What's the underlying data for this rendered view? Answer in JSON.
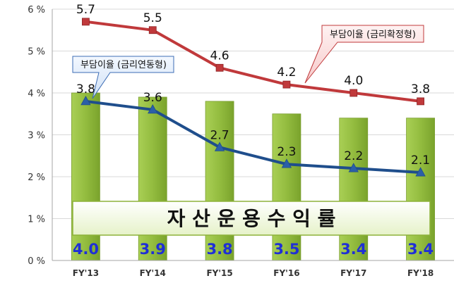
{
  "chart_data": {
    "type": "bar",
    "title": "",
    "banner": "자 산 운 용 수 익 률",
    "categories": [
      "FY'13",
      "FY'14",
      "FY'15",
      "FY'16",
      "FY'17",
      "FY'18"
    ],
    "y_ticks": [
      "0 %",
      "1 %",
      "2 %",
      "3 %",
      "4 %",
      "5 %",
      "6 %"
    ],
    "ylim": [
      0,
      6
    ],
    "ylabel": "",
    "xlabel": "",
    "grid": true,
    "bars": {
      "values": [
        4.0,
        3.9,
        3.8,
        3.5,
        3.4,
        3.4
      ],
      "labels": [
        "4.0",
        "3.9",
        "3.8",
        "3.5",
        "3.4",
        "3.4"
      ],
      "color": "#8db23a"
    },
    "series": [
      {
        "name": "부담이율 (금리확정형)",
        "values": [
          5.7,
          5.5,
          4.6,
          4.2,
          4.0,
          3.8
        ],
        "labels": [
          "5.7",
          "5.5",
          "4.6",
          "4.2",
          "4.0",
          "3.8"
        ],
        "color": "#c0393b",
        "marker": "square"
      },
      {
        "name": "부담이율 (금리연동형)",
        "values": [
          3.8,
          3.6,
          2.7,
          2.3,
          2.2,
          2.1
        ],
        "labels": [
          "3.8",
          "3.6",
          "2.7",
          "2.3",
          "2.2",
          "2.1"
        ],
        "color": "#1f4e8c",
        "marker": "triangle"
      }
    ]
  }
}
